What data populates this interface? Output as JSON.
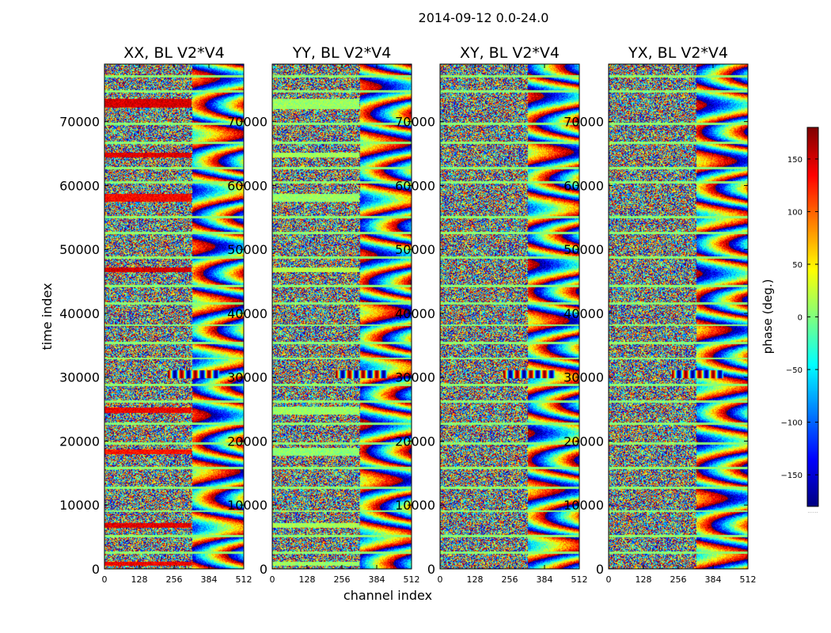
{
  "figure": {
    "suptitle": "2014-09-12 0.0-24.0"
  },
  "chart_data": [
    {
      "type": "heatmap",
      "title": "XX, BL V2*V4",
      "xlabel": "channel index",
      "ylabel": "time index",
      "xlim": [
        0,
        512
      ],
      "ylim": [
        0,
        79000
      ],
      "xticks": [
        0,
        128,
        256,
        384,
        512
      ],
      "yticks": [
        0,
        10000,
        20000,
        30000,
        40000,
        50000,
        60000,
        70000
      ],
      "value_range": [
        -180,
        180
      ],
      "bands": [
        [
          500,
          1200,
          140
        ],
        [
          6500,
          7200,
          145
        ],
        [
          18000,
          18800,
          130
        ],
        [
          24400,
          25300,
          140
        ],
        [
          46500,
          47200,
          150
        ],
        [
          57500,
          58800,
          135
        ],
        [
          64500,
          65200,
          145
        ],
        [
          72200,
          73600,
          150
        ]
      ]
    },
    {
      "type": "heatmap",
      "title": "YY, BL V2*V4",
      "xlabel": "channel index",
      "ylabel": "",
      "xlim": [
        0,
        512
      ],
      "ylim": [
        0,
        79000
      ],
      "xticks": [
        0,
        128,
        256,
        384,
        512
      ],
      "yticks": [
        0,
        10000,
        20000,
        30000,
        40000,
        50000,
        60000,
        70000
      ],
      "value_range": [
        -180,
        180
      ],
      "bands": [
        [
          500,
          1200,
          10
        ],
        [
          6500,
          7200,
          15
        ],
        [
          17800,
          19000,
          5
        ],
        [
          24200,
          25500,
          10
        ],
        [
          46500,
          47200,
          20
        ],
        [
          57500,
          58800,
          10
        ],
        [
          64500,
          65200,
          15
        ],
        [
          72000,
          73600,
          10
        ]
      ]
    },
    {
      "type": "heatmap",
      "title": "XY, BL V2*V4",
      "xlabel": "",
      "ylabel": "",
      "xlim": [
        0,
        512
      ],
      "ylim": [
        0,
        79000
      ],
      "xticks": [
        0,
        128,
        256,
        384,
        512
      ],
      "yticks": [
        0,
        10000,
        20000,
        30000,
        40000,
        50000,
        60000,
        70000
      ],
      "value_range": [
        -180,
        180
      ],
      "bands": []
    },
    {
      "type": "heatmap",
      "title": "YX, BL V2*V4",
      "xlabel": "",
      "ylabel": "",
      "xlim": [
        0,
        512
      ],
      "ylim": [
        0,
        79000
      ],
      "xticks": [
        0,
        128,
        256,
        384,
        512
      ],
      "yticks": [
        0,
        10000,
        20000,
        30000,
        40000,
        50000,
        60000,
        70000
      ],
      "value_range": [
        -180,
        180
      ],
      "bands": []
    }
  ],
  "colorbar": {
    "label": "phase (deg.)",
    "range": [
      -180,
      180
    ],
    "ticks": [
      150,
      100,
      50,
      0,
      -50,
      -100,
      -150
    ],
    "tick_labels": [
      "150",
      "100",
      "50",
      "0",
      "−50",
      "−100",
      "−150"
    ],
    "colormap": "jet",
    "bottom_label": "......"
  },
  "gaps": [
    2600,
    5200,
    9100,
    12700,
    15800,
    19700,
    22800,
    26300,
    28800,
    33000,
    35400,
    38200,
    41600,
    44300,
    48800,
    52600,
    55100,
    60500,
    62800,
    66700,
    69700,
    74800,
    77100
  ]
}
